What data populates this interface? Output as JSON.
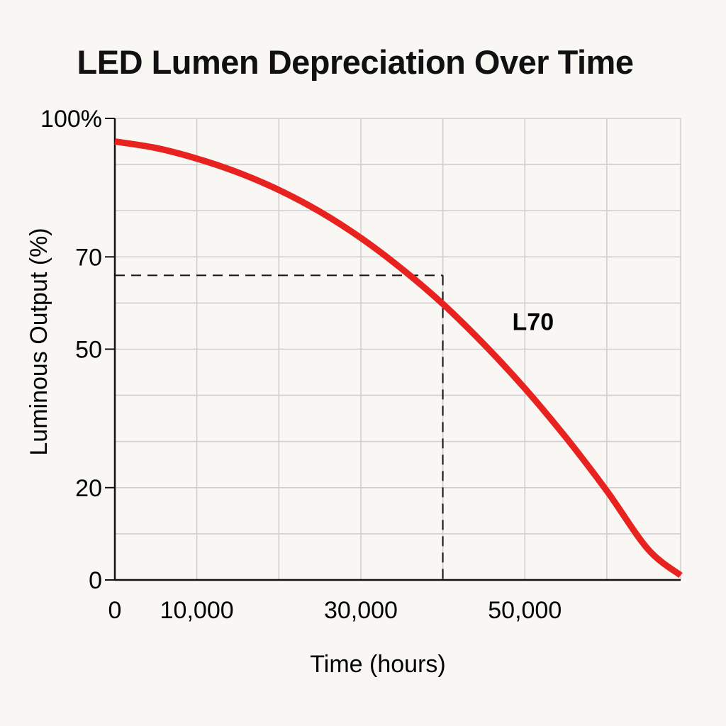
{
  "chart_data": {
    "type": "line",
    "title": "LED Lumen Depreciation Over Time",
    "xlabel": "Time (hours)",
    "ylabel": "Luminous Output (%)",
    "grid": true,
    "legend": "none",
    "x_tick_labels": [
      {
        "value": 0,
        "label": "0"
      },
      {
        "value": 10000,
        "label": "10,000"
      },
      {
        "value": 30000,
        "label": "30,000"
      },
      {
        "value": 50000,
        "label": "50,000"
      }
    ],
    "y_tick_labels": [
      {
        "value": 0,
        "label": "0"
      },
      {
        "value": 20,
        "label": "20"
      },
      {
        "value": 50,
        "label": "50"
      },
      {
        "value": 70,
        "label": "70"
      },
      {
        "value": 100,
        "label": "100%"
      }
    ],
    "x_grid_values": [
      0,
      10000,
      20000,
      30000,
      40000,
      50000,
      60000,
      69000
    ],
    "y_grid_values": [
      0,
      10,
      20,
      30,
      40,
      50,
      60,
      70,
      80,
      90,
      100
    ],
    "xlim": [
      0,
      69000
    ],
    "ylim": [
      0,
      100
    ],
    "series": [
      {
        "color": "#e8231f",
        "x": [
          0,
          5000,
          10000,
          15000,
          20000,
          25000,
          30000,
          35000,
          40000,
          45000,
          50000,
          55000,
          60000,
          65000,
          69000
        ],
        "y": [
          95,
          93.6,
          91.3,
          88.3,
          84.5,
          79.8,
          74.1,
          67.4,
          59.8,
          51.1,
          41.5,
          30.9,
          19.3,
          6.7,
          1
        ]
      }
    ],
    "reference_point": {
      "x": 40000,
      "y": 66
    },
    "annotations": [
      {
        "text": "L70",
        "x": 51000,
        "y": 56
      }
    ]
  }
}
